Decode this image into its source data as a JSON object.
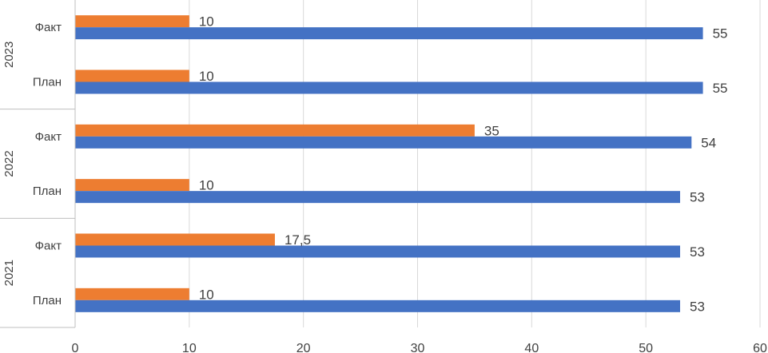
{
  "chart_data": {
    "type": "bar",
    "orientation": "horizontal",
    "groups": [
      {
        "name": "2021",
        "categories": [
          {
            "label": "План",
            "values": [
              10,
              53
            ]
          },
          {
            "label": "Факт",
            "values": [
              17.5,
              53
            ]
          }
        ]
      },
      {
        "name": "2022",
        "categories": [
          {
            "label": "План",
            "values": [
              10,
              53
            ]
          },
          {
            "label": "Факт",
            "values": [
              35,
              54
            ]
          }
        ]
      },
      {
        "name": "2023",
        "categories": [
          {
            "label": "План",
            "values": [
              10,
              55
            ]
          },
          {
            "label": "Факт",
            "values": [
              10,
              55
            ]
          }
        ]
      }
    ],
    "series": [
      {
        "color": "#ED7D31"
      },
      {
        "color": "#4472C4"
      }
    ],
    "data_labels": true,
    "xlim": [
      0,
      60
    ],
    "xticks": [
      0,
      10,
      20,
      30,
      40,
      50,
      60
    ],
    "grid": "vertical",
    "legend": "none",
    "title": "",
    "xlabel": "",
    "ylabel": ""
  }
}
